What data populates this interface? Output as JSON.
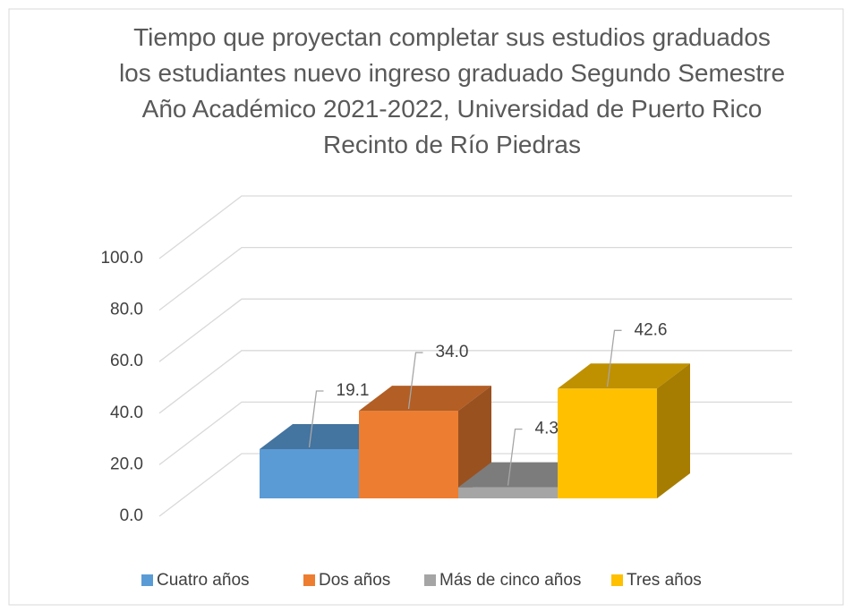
{
  "chart_data": {
    "type": "bar3d",
    "title": "Tiempo que proyectan completar sus estudios graduados los estudiantes nuevo ingreso graduado Segundo Semestre Año Académico 2021-2022, Universidad de Puerto Rico Recinto de Río Piedras",
    "categories": [
      "Cuatro años",
      "Dos años",
      "Más de cinco años",
      "Tres años"
    ],
    "values": [
      19.1,
      34.0,
      4.3,
      42.6
    ],
    "value_labels": [
      "19.1",
      "34.0",
      "4.3",
      "42.6"
    ],
    "colors": [
      "#5b9bd5",
      "#ed7d31",
      "#a5a5a5",
      "#ffc000"
    ],
    "ylim": [
      0,
      100
    ],
    "yticks": [
      {
        "value": 0,
        "label": "0.0"
      },
      {
        "value": 20,
        "label": "20.0"
      },
      {
        "value": 40,
        "label": "40.0"
      },
      {
        "value": 60,
        "label": "60.0"
      },
      {
        "value": 80,
        "label": "80.0"
      },
      {
        "value": 100,
        "label": "100.0"
      }
    ],
    "grid": true,
    "legend": "bottom"
  }
}
